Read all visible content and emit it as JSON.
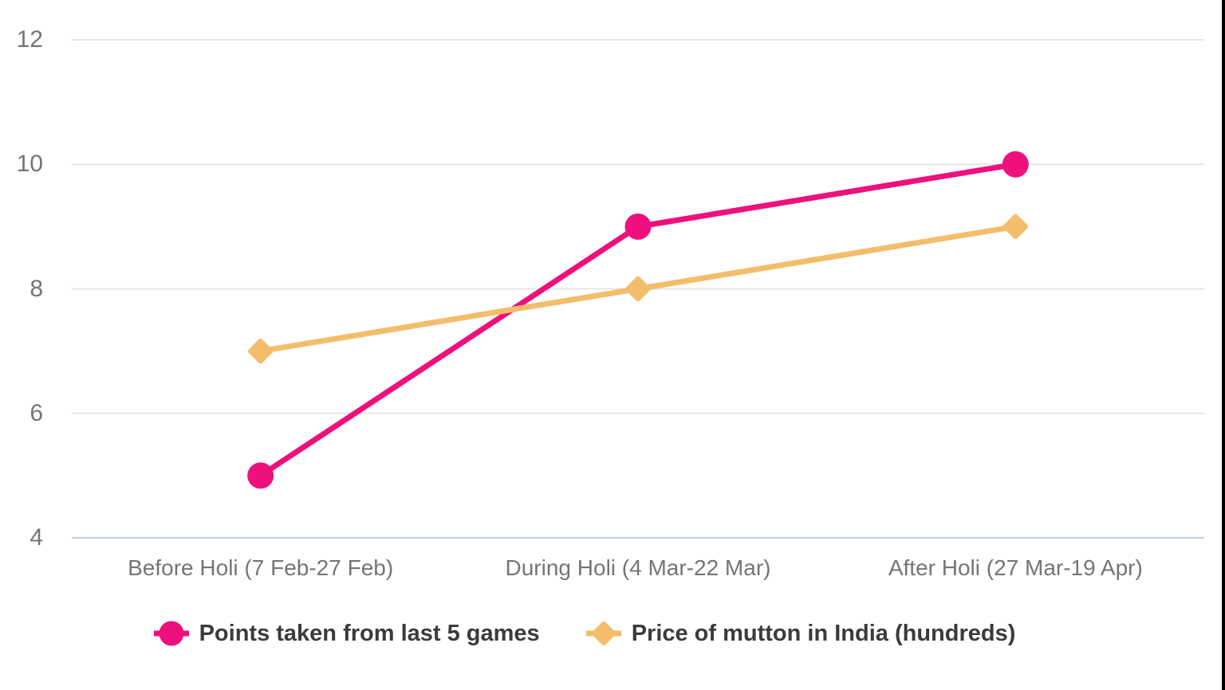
{
  "page": {
    "background": "#ffffff",
    "right_border_color": "#000000"
  },
  "chart_data": {
    "type": "line",
    "title": "",
    "xlabel": "",
    "ylabel": "",
    "categories": [
      "Before Holi (7 Feb-27 Feb)",
      "During Holi (4 Mar-22 Mar)",
      "After Holi (27 Mar-19 Apr)"
    ],
    "series": [
      {
        "name": "Points taken from last 5 games",
        "values": [
          5,
          9,
          10
        ],
        "color": "#EE107D",
        "marker": "circle"
      },
      {
        "name": "Price of mutton in India (hundreds)",
        "values": [
          7,
          8,
          9
        ],
        "color": "#F4BD6B",
        "marker": "diamond"
      }
    ],
    "ylim": [
      4,
      12
    ],
    "yticks": [
      12,
      10,
      8,
      6,
      4
    ],
    "grid": true,
    "legend_position": "bottom",
    "gridline_color": "#E6E6E6",
    "baseline_color": "#C9D5DE",
    "tick_label_color": "#757575",
    "legend_text_color": "#3B3B3B"
  }
}
